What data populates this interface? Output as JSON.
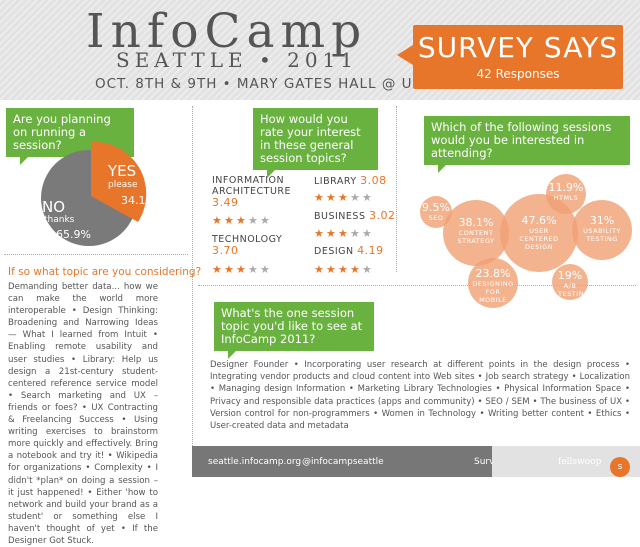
{
  "header": {
    "title": "InfoCamp",
    "subtitle": "SEATTLE • 2011",
    "dates": "OCT. 8TH & 9TH  •  MARY GATES HALL @ UW"
  },
  "survey": {
    "title": "SURVEY SAYS",
    "responses": "42 Responses"
  },
  "q1": {
    "question": "Are you planning on running a session?",
    "yes_label": "YES",
    "yes_sub": "please",
    "yes_pct": "34.1%",
    "no_label": "NO",
    "no_sub": "thanks",
    "no_pct": "65.9%"
  },
  "q1b": {
    "question": "If so what topic are you considering?",
    "answers": "Demanding better data... how we can make the world more interoperable • Design Thinking: Broadening and Narrowing Ideas — What I learned from Intuit • Enabling remote usability and user studies • Library: Help us design a 21st-century student-centered reference service model • Search marketing and UX – friends or foes? • UX Contracting & Freelancing Success • Using writing exercises to brainstorm more quickly and effectively. Bring a notebook and try it! • Wikipedia for organizations • Complexity • I didn't *plan* on doing a session – it just happened! • Either 'how to network and build your brand as a student' or something else I haven't thought of yet • If the Designer Got Stuck."
  },
  "q2": {
    "question": "How would you rate your interest in these general session topics?",
    "ratings": [
      {
        "name": "INFORMATION ARCHITECTURE",
        "value": "3.49",
        "stars": 3
      },
      {
        "name": "LIBRARY",
        "value": "3.08",
        "stars": 3
      },
      {
        "name": "BUSINESS",
        "value": "3.02",
        "stars": 3
      },
      {
        "name": "TECHNOLOGY",
        "value": "3.70",
        "stars": 3
      },
      {
        "name": "DESIGN",
        "value": "4.19",
        "stars": 4
      }
    ]
  },
  "q3": {
    "question": "Which of the following sessions would you be interested in attending?",
    "bubbles": [
      {
        "pct": "9.5%",
        "label": "SEO"
      },
      {
        "pct": "38.1%",
        "label": "CONTENT STRATEGY"
      },
      {
        "pct": "47.6%",
        "label": "USER CENTERED DESIGN"
      },
      {
        "pct": "11.9%",
        "label": "HTML5"
      },
      {
        "pct": "31%",
        "label": "USABILITY TESTING"
      },
      {
        "pct": "23.8%",
        "label": "DESIGNING FOR MOBILE"
      },
      {
        "pct": "19%",
        "label": "A/B TESTING"
      }
    ]
  },
  "q4": {
    "question": "What's the one session topic you'd like to see at InfoCamp 2011?",
    "answers": "Designer Founder • Incorporating user research at different points in the design process • Integrating vendor products and cloud content into Web sites • Job search strategy • Localization • Managing design Information • Marketing Library Technologies • Physical Information Space • Privacy and responsible data practices (apps and community) • SEO / SEM •  The business of UX •  Version control for non-programmers •  Women in Technology • Writing better content • Ethics • User-created data and metadata"
  },
  "footer": {
    "site": "seattle.infocamp.org",
    "twitter": "@infocampseattle",
    "credit": "Survey & Flyer by:",
    "brand": "fellswoop"
  },
  "colors": {
    "orange": "#e8762a",
    "green": "#6ab23f",
    "gray": "#777777"
  }
}
